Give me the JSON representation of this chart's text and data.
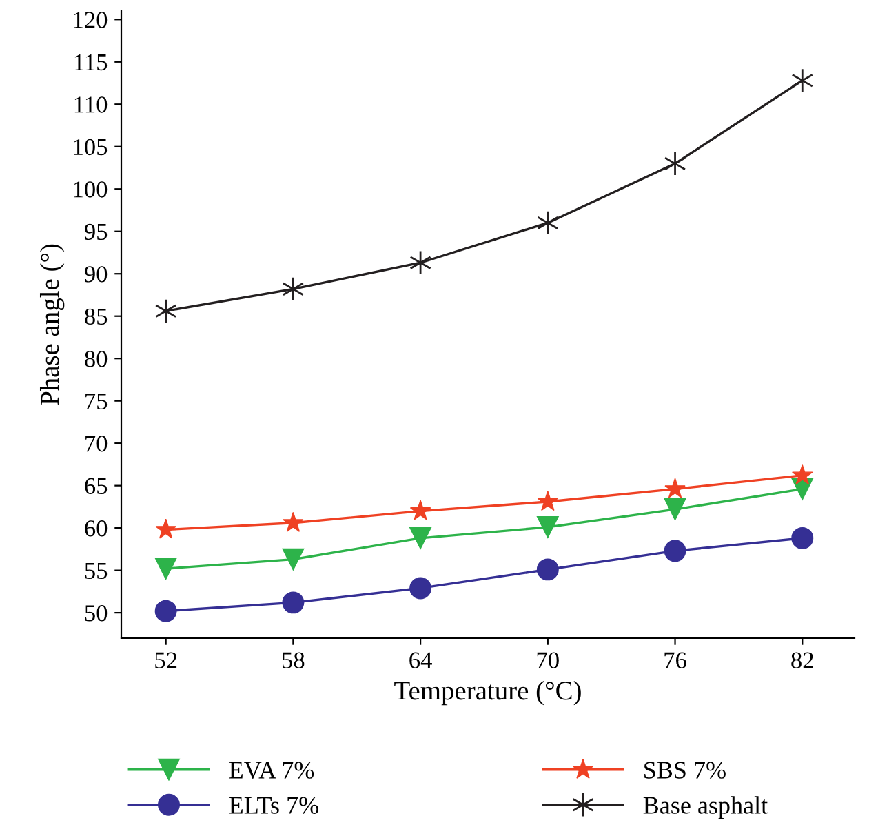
{
  "chart_data": {
    "type": "line",
    "xlabel": "Temperature (°C)",
    "ylabel": "Phase angle (°)",
    "categories": [
      "52",
      "58",
      "64",
      "70",
      "76",
      "82"
    ],
    "ylim": [
      47,
      121
    ],
    "yticks": [
      50,
      55,
      60,
      65,
      70,
      75,
      80,
      85,
      90,
      95,
      100,
      105,
      110,
      115,
      120
    ],
    "grid": false,
    "legend": "bottom",
    "series": [
      {
        "name": "EVA 7%",
        "color": "#2db34a",
        "marker": "triangle",
        "values": [
          55.2,
          56.3,
          58.8,
          60.1,
          62.2,
          64.6
        ]
      },
      {
        "name": "SBS 7%",
        "color": "#ef4123",
        "marker": "star",
        "values": [
          59.8,
          60.6,
          62.0,
          63.1,
          64.6,
          66.2
        ]
      },
      {
        "name": "ELTs 7%",
        "color": "#352f94",
        "marker": "circle",
        "values": [
          50.2,
          51.2,
          52.9,
          55.1,
          57.3,
          58.8
        ]
      },
      {
        "name": "Base asphalt",
        "color": "#231f20",
        "marker": "cross",
        "values": [
          85.6,
          88.2,
          91.3,
          96.0,
          103.0,
          112.8
        ]
      }
    ]
  }
}
